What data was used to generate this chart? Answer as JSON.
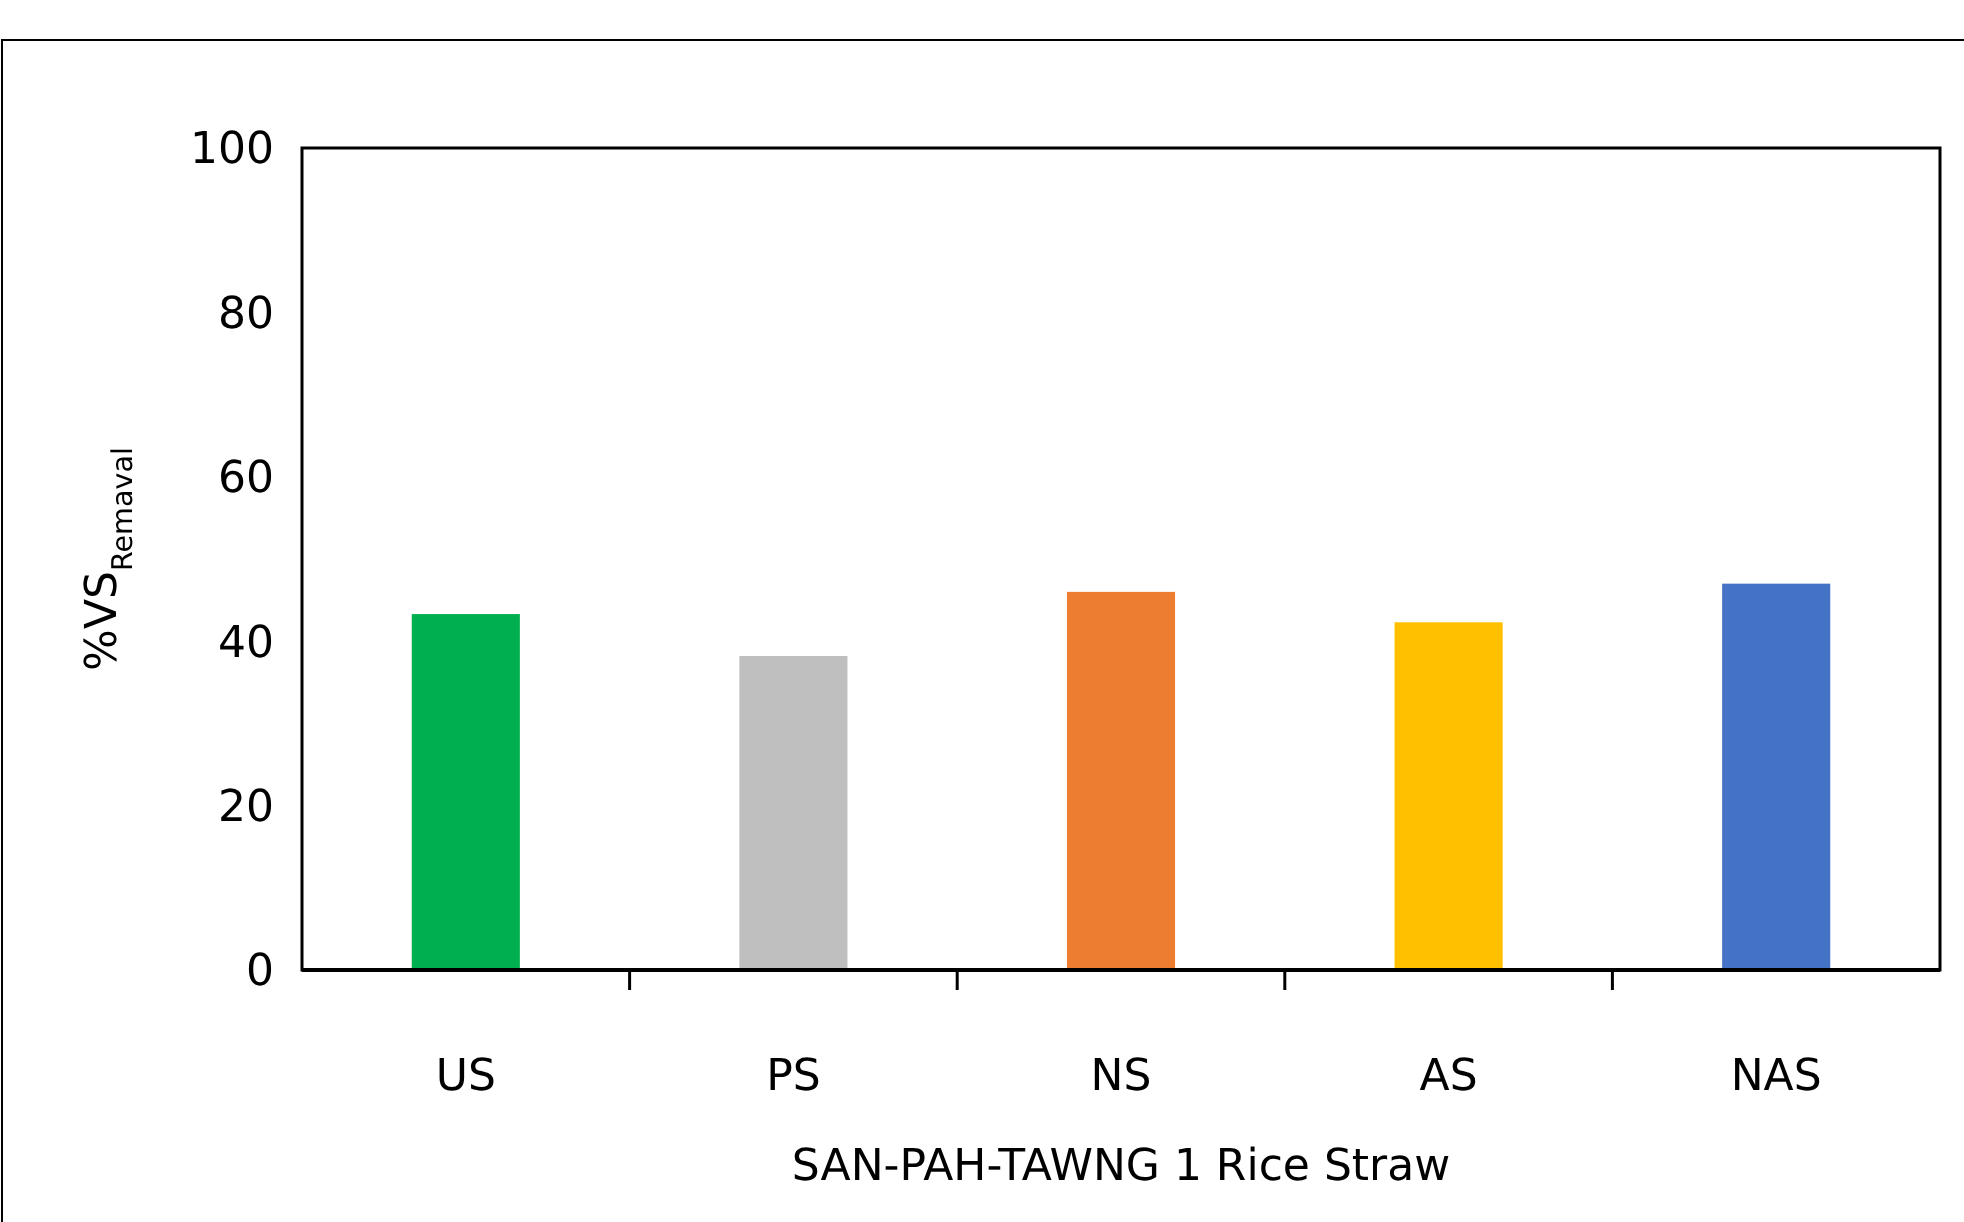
{
  "chart_data": {
    "type": "bar",
    "xlabel": "SAN-PAH-TAWNG 1 Rice Straw",
    "ylabel": "%VS$_{Remaval}$",
    "categories": [
      "US",
      "PS",
      "NS",
      "AS",
      "NAS"
    ],
    "values": [
      43.3,
      38.2,
      46.0,
      42.3,
      47.0
    ],
    "colors": [
      "#00b050",
      "#bfbfbf",
      "#ed7d31",
      "#ffc000",
      "#4472c4"
    ],
    "ylim": [
      0,
      100
    ],
    "yticks": [
      0,
      20,
      40,
      60,
      80,
      100
    ],
    "grid": false
  }
}
